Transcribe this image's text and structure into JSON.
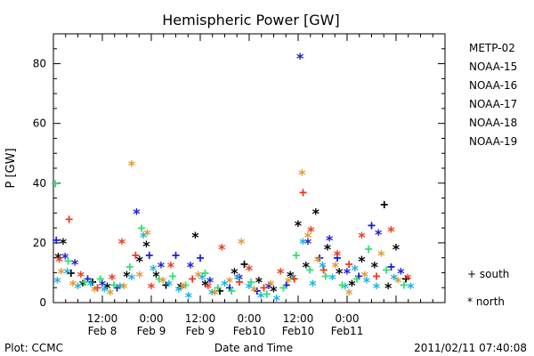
{
  "colors": {
    "METP-02": "#000000",
    "NOAA-15": "#1a1ad8",
    "NOAA-16": "#1ab0e0",
    "NOAA-17": "#30e070",
    "NOAA-18": "#e09a30",
    "NOAA-19": "#e83a20"
  },
  "footer": {
    "plot_credit": "Plot: CCMC",
    "timestamp": "2011/02/11 07:40:08"
  },
  "chart_data": {
    "type": "scatter",
    "title": "Hemispheric Power [GW]",
    "xlabel": "Date and Time",
    "ylabel": "P [GW]",
    "xlim": [
      0,
      4
    ],
    "ylim": [
      0,
      90
    ],
    "yticks": [
      0,
      20,
      40,
      60,
      80
    ],
    "xticks": [
      {
        "x": 0.5,
        "time": "12:00",
        "date": "Feb 8"
      },
      {
        "x": 1.0,
        "time": "0:00",
        "date": "Feb 9"
      },
      {
        "x": 1.5,
        "time": "12:00",
        "date": "Feb 9"
      },
      {
        "x": 2.0,
        "time": "0:00",
        "date": "Feb10"
      },
      {
        "x": 2.5,
        "time": "12:00",
        "date": "Feb10"
      },
      {
        "x": 3.0,
        "time": "0:00",
        "date": "Feb11"
      }
    ],
    "legend": {
      "placement": "right",
      "symbols": [
        {
          "symbol": "+",
          "label": "south"
        },
        {
          "symbol": "*",
          "label": "north"
        }
      ]
    },
    "series": [
      {
        "name": "METP-02",
        "points": [
          [
            0.05,
            15,
            "*"
          ],
          [
            0.1,
            20,
            "*"
          ],
          [
            0.18,
            10,
            "+"
          ],
          [
            0.3,
            6,
            "*"
          ],
          [
            0.4,
            7,
            "+"
          ],
          [
            0.55,
            5,
            "*"
          ],
          [
            0.75,
            9,
            "*"
          ],
          [
            0.88,
            14,
            "*"
          ],
          [
            0.95,
            19,
            "*"
          ],
          [
            1.05,
            9,
            "*"
          ],
          [
            1.15,
            6,
            "+"
          ],
          [
            1.3,
            5,
            "*"
          ],
          [
            1.45,
            22,
            "*"
          ],
          [
            1.55,
            6,
            "*"
          ],
          [
            1.7,
            4,
            "+"
          ],
          [
            1.85,
            10,
            "*"
          ],
          [
            1.95,
            13,
            "+"
          ],
          [
            2.1,
            7,
            "*"
          ],
          [
            2.25,
            4,
            "*"
          ],
          [
            2.42,
            9,
            "*"
          ],
          [
            2.5,
            26,
            "*"
          ],
          [
            2.58,
            12,
            "*"
          ],
          [
            2.68,
            30,
            "*"
          ],
          [
            2.8,
            18,
            "*"
          ],
          [
            2.92,
            10,
            "*"
          ],
          [
            3.05,
            6,
            "*"
          ],
          [
            3.15,
            14,
            "*"
          ],
          [
            3.28,
            12,
            "*"
          ],
          [
            3.38,
            33,
            "+"
          ],
          [
            3.5,
            18,
            "*"
          ],
          [
            3.42,
            5,
            "*"
          ],
          [
            3.6,
            8,
            "+"
          ]
        ]
      },
      {
        "name": "NOAA-15",
        "points": [
          [
            0.03,
            21,
            "+"
          ],
          [
            0.12,
            15,
            "*"
          ],
          [
            0.22,
            13,
            "*"
          ],
          [
            0.35,
            8,
            "+"
          ],
          [
            0.5,
            6,
            "*"
          ],
          [
            0.65,
            5,
            "+"
          ],
          [
            0.85,
            30,
            "*"
          ],
          [
            0.98,
            16,
            "+"
          ],
          [
            1.1,
            12,
            "*"
          ],
          [
            1.25,
            16,
            "+"
          ],
          [
            1.4,
            12,
            "*"
          ],
          [
            1.5,
            15,
            "+"
          ],
          [
            1.6,
            7,
            "*"
          ],
          [
            1.8,
            5,
            "+"
          ],
          [
            1.9,
            8,
            "*"
          ],
          [
            2.08,
            4,
            "+"
          ],
          [
            2.2,
            5,
            "*"
          ],
          [
            2.38,
            6,
            "+"
          ],
          [
            2.52,
            82,
            "*"
          ],
          [
            2.6,
            20,
            "*"
          ],
          [
            2.72,
            15,
            "+"
          ],
          [
            2.82,
            21,
            "*"
          ],
          [
            2.9,
            15,
            "+"
          ],
          [
            3.0,
            10,
            "*"
          ],
          [
            3.12,
            9,
            "+"
          ],
          [
            3.25,
            26,
            "+"
          ],
          [
            3.32,
            23,
            "*"
          ],
          [
            3.45,
            12,
            "+"
          ],
          [
            3.55,
            10,
            "*"
          ]
        ]
      },
      {
        "name": "NOAA-16",
        "points": [
          [
            0.04,
            7,
            "*"
          ],
          [
            0.14,
            10,
            "*"
          ],
          [
            0.25,
            5,
            "*"
          ],
          [
            0.38,
            6,
            "*"
          ],
          [
            0.52,
            4,
            "*"
          ],
          [
            0.68,
            5,
            "*"
          ],
          [
            0.8,
            8,
            "*"
          ],
          [
            0.92,
            22,
            "*"
          ],
          [
            1.02,
            11,
            "*"
          ],
          [
            1.18,
            6,
            "*"
          ],
          [
            1.28,
            4,
            "*"
          ],
          [
            1.38,
            2,
            "*"
          ],
          [
            1.52,
            8,
            "*"
          ],
          [
            1.62,
            3,
            "*"
          ],
          [
            1.75,
            6,
            "*"
          ],
          [
            1.88,
            8,
            "*"
          ],
          [
            2.0,
            5,
            "*"
          ],
          [
            2.12,
            2,
            "*"
          ],
          [
            2.28,
            1,
            "*"
          ],
          [
            2.45,
            8,
            "*"
          ],
          [
            2.55,
            20,
            "*"
          ],
          [
            2.65,
            6,
            "*"
          ],
          [
            2.75,
            12,
            "*"
          ],
          [
            2.85,
            8,
            "*"
          ],
          [
            2.98,
            5,
            "*"
          ],
          [
            3.08,
            11,
            "*"
          ],
          [
            3.2,
            7,
            "*"
          ],
          [
            3.3,
            5,
            "*"
          ],
          [
            3.48,
            8,
            "*"
          ],
          [
            3.65,
            5,
            "*"
          ]
        ]
      },
      {
        "name": "NOAA-17",
        "points": [
          [
            0.02,
            40,
            "+"
          ],
          [
            0.15,
            14,
            "+"
          ],
          [
            0.32,
            7,
            "+"
          ],
          [
            0.48,
            8,
            "+"
          ],
          [
            0.62,
            6,
            "+"
          ],
          [
            0.78,
            12,
            "+"
          ],
          [
            0.9,
            25,
            "+"
          ],
          [
            1.08,
            8,
            "+"
          ],
          [
            1.22,
            9,
            "+"
          ],
          [
            1.35,
            6,
            "+"
          ],
          [
            1.55,
            10,
            "+"
          ],
          [
            1.68,
            5,
            "+"
          ],
          [
            1.82,
            4,
            "+"
          ],
          [
            2.02,
            7,
            "+"
          ],
          [
            2.18,
            3,
            "+"
          ],
          [
            2.35,
            5,
            "+"
          ],
          [
            2.48,
            16,
            "+"
          ],
          [
            2.62,
            11,
            "+"
          ],
          [
            2.78,
            9,
            "+"
          ],
          [
            2.95,
            6,
            "+"
          ],
          [
            3.1,
            8,
            "+"
          ],
          [
            3.22,
            18,
            "+"
          ],
          [
            3.4,
            11,
            "+"
          ],
          [
            3.58,
            6,
            "+"
          ]
        ]
      },
      {
        "name": "NOAA-18",
        "points": [
          [
            0.08,
            10,
            "*"
          ],
          [
            0.2,
            6,
            "*"
          ],
          [
            0.42,
            4,
            "*"
          ],
          [
            0.58,
            3,
            "*"
          ],
          [
            0.72,
            5,
            "*"
          ],
          [
            0.8,
            46,
            "*"
          ],
          [
            0.88,
            9,
            "*"
          ],
          [
            0.96,
            23,
            "*"
          ],
          [
            1.12,
            7,
            "*"
          ],
          [
            1.32,
            5,
            "*"
          ],
          [
            1.48,
            9,
            "*"
          ],
          [
            1.65,
            3,
            "*"
          ],
          [
            1.8,
            7,
            "*"
          ],
          [
            1.92,
            20,
            "*"
          ],
          [
            2.05,
            4,
            "*"
          ],
          [
            2.22,
            6,
            "*"
          ],
          [
            2.4,
            7,
            "*"
          ],
          [
            2.54,
            43,
            "*"
          ],
          [
            2.6,
            22,
            "*"
          ],
          [
            2.7,
            14,
            "*"
          ],
          [
            2.88,
            12,
            "*"
          ],
          [
            3.02,
            3,
            "*"
          ],
          [
            3.18,
            9,
            "*"
          ],
          [
            3.35,
            16,
            "*"
          ],
          [
            3.52,
            7,
            "*"
          ]
        ]
      },
      {
        "name": "NOAA-19",
        "points": [
          [
            0.06,
            14,
            "*"
          ],
          [
            0.16,
            28,
            "+"
          ],
          [
            0.28,
            9,
            "*"
          ],
          [
            0.45,
            5,
            "+"
          ],
          [
            0.6,
            8,
            "*"
          ],
          [
            0.7,
            20,
            "*"
          ],
          [
            0.84,
            16,
            "+"
          ],
          [
            1.0,
            5,
            "*"
          ],
          [
            1.2,
            12,
            "*"
          ],
          [
            1.42,
            8,
            "+"
          ],
          [
            1.58,
            5,
            "*"
          ],
          [
            1.72,
            18,
            "*"
          ],
          [
            1.9,
            7,
            "+"
          ],
          [
            2.0,
            11,
            "*"
          ],
          [
            2.15,
            5,
            "+"
          ],
          [
            2.32,
            10,
            "*"
          ],
          [
            2.46,
            8,
            "+"
          ],
          [
            2.55,
            37,
            "+"
          ],
          [
            2.63,
            24,
            "*"
          ],
          [
            2.76,
            11,
            "+"
          ],
          [
            2.9,
            16,
            "*"
          ],
          [
            3.02,
            13,
            "+"
          ],
          [
            3.15,
            22,
            "*"
          ],
          [
            3.3,
            9,
            "+"
          ],
          [
            3.45,
            24,
            "*"
          ],
          [
            3.62,
            8,
            "*"
          ]
        ]
      }
    ]
  }
}
